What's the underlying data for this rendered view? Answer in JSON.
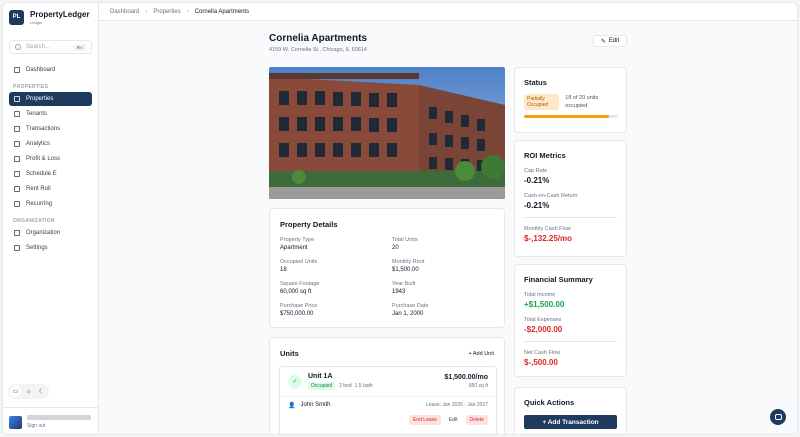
{
  "app": {
    "name": "PropertyLedger",
    "logo_initials": "PL",
    "subtitle": "Ledger"
  },
  "search": {
    "placeholder": "Search...",
    "shortcut": "⌘K"
  },
  "sidebar": {
    "items": [
      {
        "label": "Dashboard",
        "icon": "grid-icon"
      }
    ],
    "sections": [
      {
        "title": "PROPERTIES",
        "items": [
          {
            "label": "Properties",
            "icon": "building-icon",
            "active": true
          },
          {
            "label": "Tenants",
            "icon": "users-icon"
          },
          {
            "label": "Transactions",
            "icon": "transactions-icon"
          },
          {
            "label": "Analytics",
            "icon": "analytics-icon"
          },
          {
            "label": "Profit & Loss",
            "icon": "chart-icon"
          },
          {
            "label": "Schedule E",
            "icon": "document-icon"
          },
          {
            "label": "Rent Roll",
            "icon": "list-icon"
          },
          {
            "label": "Recurring",
            "icon": "calendar-icon"
          }
        ]
      },
      {
        "title": "ORGANIZATION",
        "items": [
          {
            "label": "Organization",
            "icon": "organization-icon"
          },
          {
            "label": "Settings",
            "icon": "gear-icon"
          }
        ]
      }
    ],
    "user": {
      "sign_out": "Sign out"
    }
  },
  "breadcrumb": [
    "Dashboard",
    "Properties",
    "Cornelia Apartments"
  ],
  "property": {
    "name": "Cornelia Apartments",
    "address": "4159 W. Cornelia St., Chicago, IL 60614",
    "edit_label": "Edit"
  },
  "details": {
    "title": "Property Details",
    "fields": [
      {
        "label": "Property Type",
        "value": "Apartment"
      },
      {
        "label": "Total Units",
        "value": "20"
      },
      {
        "label": "Occupied Units",
        "value": "18"
      },
      {
        "label": "Monthly Rent",
        "value": "$1,500.00"
      },
      {
        "label": "Square Footage",
        "value": "60,000 sq ft"
      },
      {
        "label": "Year Built",
        "value": "1943"
      },
      {
        "label": "Purchase Price",
        "value": "$750,000.00"
      },
      {
        "label": "Purchase Date",
        "value": "Jan 1, 2000"
      }
    ]
  },
  "units": {
    "title": "Units",
    "add_label": "+ Add Unit",
    "items": [
      {
        "name": "Unit 1A",
        "status": "Occupied",
        "beds": "2 bed",
        "baths": "1.5 bath",
        "rent": "$1,500.00/mo",
        "size": "850 sq ft",
        "tenant": "John Smith",
        "lease": "Lease: Jan 2026 - Jan 2027",
        "actions": {
          "end_lease": "End Lease",
          "edit": "Edit",
          "delete": "Delete"
        }
      }
    ]
  },
  "status": {
    "title": "Status",
    "badge": "Partially Occupied",
    "occupancy_text": "18 of 20 units occupied",
    "occupancy_fraction": 0.9,
    "colors": {
      "fill": "#f59e0b",
      "badge_bg": "#fde8c8"
    }
  },
  "roi": {
    "title": "ROI Metrics",
    "metrics": [
      {
        "label": "Cap Rate",
        "value": "-0.21%"
      },
      {
        "label": "Cash-on-Cash Return",
        "value": "-0.21%"
      },
      {
        "label": "Monthly Cash Flow",
        "value": "$-,132.25/mo"
      }
    ]
  },
  "financial": {
    "title": "Financial Summary",
    "metrics": [
      {
        "label": "Total Income",
        "value": "+$1,500.00"
      },
      {
        "label": "Total Expenses",
        "value": "-$2,000.00"
      },
      {
        "label": "Net Cash Flow",
        "value": "$-,500.00"
      }
    ]
  },
  "quick_actions": {
    "title": "Quick Actions",
    "add_transaction": "+ Add Transaction"
  },
  "colors": {
    "brand": "#1e3a5f",
    "positive": "#16a34a",
    "negative": "#dc2626"
  }
}
